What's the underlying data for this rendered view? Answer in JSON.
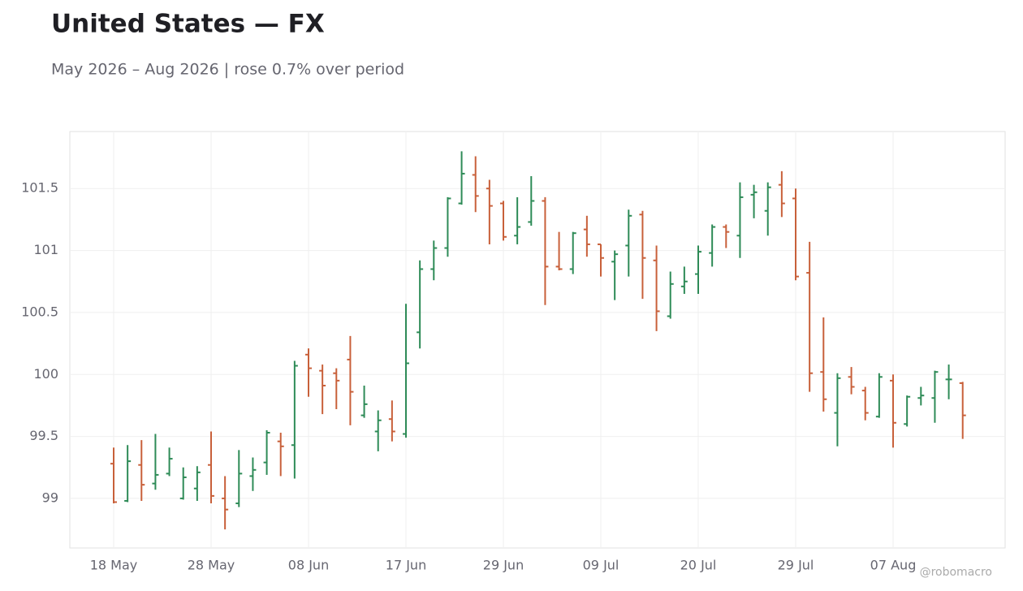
{
  "chart_data": {
    "type": "ohlc",
    "title": "United States — FX",
    "subtitle": "May 2026 – Aug 2026 | rose 0.7% over period",
    "watermark": "@robomacro",
    "categories": [
      "18 May",
      null,
      null,
      null,
      null,
      null,
      null,
      "28 May",
      null,
      null,
      null,
      null,
      null,
      null,
      "08 Jun",
      null,
      null,
      null,
      null,
      null,
      null,
      "17 Jun",
      null,
      null,
      null,
      null,
      null,
      null,
      "29 Jun",
      null,
      null,
      null,
      null,
      null,
      null,
      "09 Jul",
      null,
      null,
      null,
      null,
      null,
      null,
      "20 Jul",
      null,
      null,
      null,
      null,
      null,
      null,
      "29 Jul",
      null,
      null,
      null,
      null,
      null,
      null,
      "07 Aug",
      null,
      null,
      null,
      null,
      null
    ],
    "open": [
      99.28,
      98.98,
      99.27,
      99.12,
      99.2,
      99.0,
      99.08,
      99.27,
      99.0,
      98.96,
      99.18,
      99.29,
      99.46,
      99.43,
      100.16,
      100.03,
      100.01,
      100.12,
      99.67,
      99.54,
      99.64,
      99.52,
      100.34,
      100.85,
      101.02,
      101.38,
      101.61,
      101.5,
      101.38,
      101.12,
      101.23,
      101.4,
      100.87,
      100.85,
      101.17,
      101.05,
      100.91,
      101.04,
      101.29,
      100.92,
      100.47,
      100.71,
      100.81,
      100.98,
      101.19,
      101.12,
      101.45,
      101.32,
      101.53,
      101.42,
      100.82,
      100.02,
      99.69,
      99.98,
      99.87,
      99.66,
      99.95,
      99.6,
      99.81,
      99.81,
      99.96,
      99.93
    ],
    "high": [
      99.41,
      99.43,
      99.47,
      99.52,
      99.41,
      99.25,
      99.26,
      99.54,
      99.18,
      99.39,
      99.33,
      99.55,
      99.53,
      100.11,
      100.21,
      100.08,
      100.05,
      100.31,
      99.91,
      99.71,
      99.79,
      100.57,
      100.92,
      101.08,
      101.43,
      101.8,
      101.76,
      101.57,
      101.4,
      101.43,
      101.6,
      101.43,
      101.15,
      101.15,
      101.28,
      101.05,
      101.0,
      101.33,
      101.32,
      101.04,
      100.83,
      100.87,
      101.04,
      101.21,
      101.21,
      101.55,
      101.53,
      101.55,
      101.64,
      101.5,
      101.07,
      100.46,
      100.01,
      100.06,
      99.9,
      100.01,
      100.0,
      99.83,
      99.9,
      100.03,
      100.08,
      99.94
    ],
    "low": [
      98.96,
      98.97,
      98.98,
      99.07,
      99.18,
      98.99,
      98.98,
      98.96,
      98.75,
      98.93,
      99.06,
      99.19,
      99.18,
      99.16,
      99.82,
      99.68,
      99.72,
      99.59,
      99.65,
      99.38,
      99.46,
      99.49,
      100.21,
      100.76,
      100.95,
      101.37,
      101.31,
      101.05,
      101.08,
      101.05,
      101.2,
      100.56,
      100.84,
      100.81,
      100.95,
      100.79,
      100.6,
      100.79,
      100.61,
      100.35,
      100.45,
      100.65,
      100.65,
      100.87,
      101.02,
      100.94,
      101.26,
      101.12,
      101.27,
      100.76,
      99.86,
      99.7,
      99.42,
      99.84,
      99.63,
      99.65,
      99.41,
      99.58,
      99.75,
      99.61,
      99.8,
      99.48
    ],
    "close": [
      98.97,
      99.3,
      99.11,
      99.19,
      99.32,
      99.17,
      99.21,
      99.02,
      98.91,
      99.2,
      99.23,
      99.53,
      99.42,
      100.07,
      100.05,
      99.91,
      99.95,
      99.86,
      99.76,
      99.63,
      99.54,
      100.09,
      100.85,
      101.02,
      101.42,
      101.62,
      101.44,
      101.36,
      101.11,
      101.19,
      101.4,
      100.87,
      100.85,
      101.14,
      101.05,
      100.94,
      100.97,
      101.28,
      100.94,
      100.51,
      100.73,
      100.75,
      100.99,
      101.19,
      101.15,
      101.43,
      101.47,
      101.51,
      101.38,
      100.79,
      100.01,
      99.8,
      99.97,
      99.9,
      99.69,
      99.98,
      99.61,
      99.82,
      99.83,
      100.02,
      99.96,
      99.67
    ],
    "up_color": "#2e8b57",
    "down_color": "#c8603a",
    "ylim": [
      98.6,
      101.96
    ],
    "yticks": [
      99,
      99.5,
      100,
      100.5,
      101,
      101.5
    ],
    "grid": true
  }
}
